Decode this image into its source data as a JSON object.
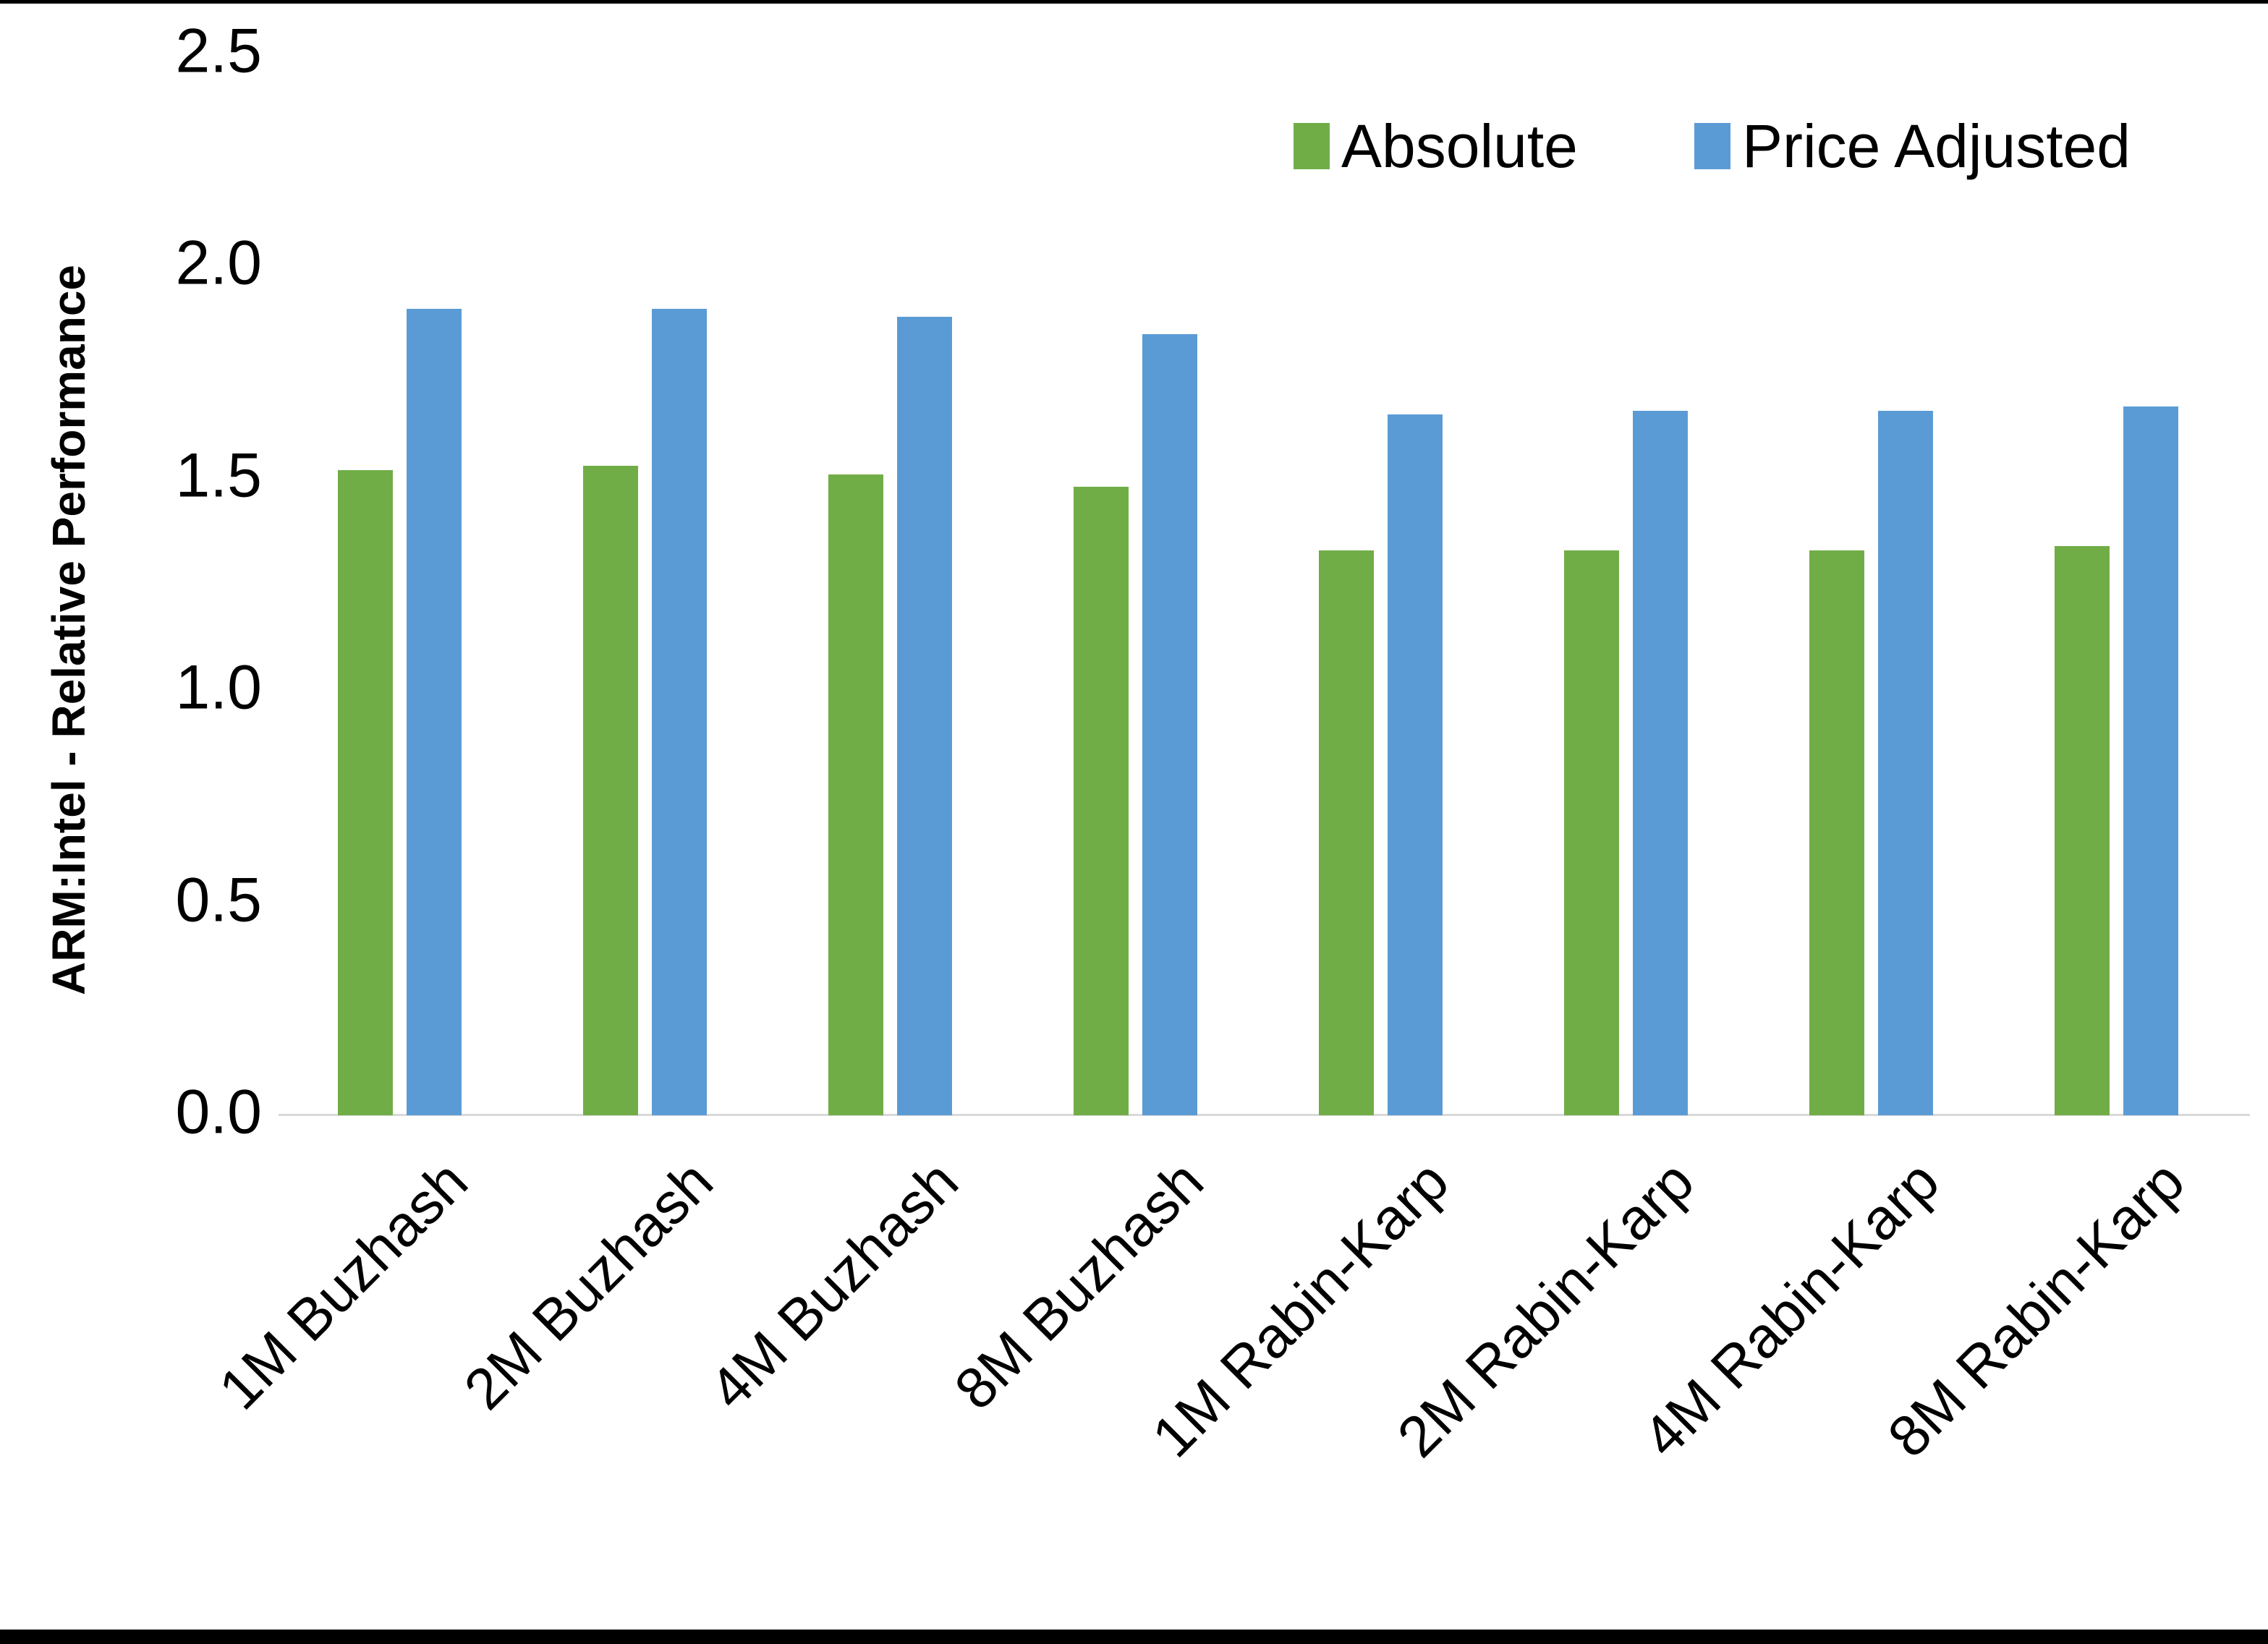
{
  "chart_data": {
    "type": "bar",
    "title": "",
    "xlabel": "",
    "ylabel": "ARM:Intel - Relative Performance",
    "ylim": [
      0,
      2.5
    ],
    "ytick_labels": [
      "0.0",
      "0.5",
      "1.0",
      "1.5",
      "2.0",
      "2.5"
    ],
    "grid": false,
    "legend_position": "top-right-inside",
    "categories": [
      "1M Buzhash",
      "2M Buzhash",
      "4M Buzhash",
      "8M Buzhash",
      "1M Rabin-Karp",
      "2M Rabin-Karp",
      "4M Rabin-Karp",
      "8M Rabin-Karp"
    ],
    "series": [
      {
        "name": "Absolute",
        "color": "#70AD47",
        "values": [
          1.52,
          1.53,
          1.51,
          1.48,
          1.33,
          1.33,
          1.33,
          1.34
        ]
      },
      {
        "name": "Price Adjusted",
        "color": "#5B9BD5",
        "values": [
          1.9,
          1.9,
          1.88,
          1.84,
          1.65,
          1.66,
          1.66,
          1.67
        ]
      }
    ],
    "axis_line_color": "#D9D9D9",
    "text_color": "#000000",
    "frame_border_color": "#000000"
  }
}
